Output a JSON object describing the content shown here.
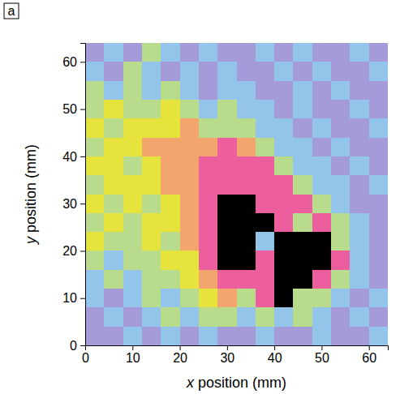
{
  "chart_data": {
    "type": "heatmap",
    "title": "a",
    "x_label": "x position (mm)",
    "y_label": "y position (mm)",
    "xlim": [
      0,
      64
    ],
    "ylim": [
      0,
      64
    ],
    "xticks": [
      0,
      10,
      20,
      30,
      40,
      50,
      60
    ],
    "yticks": [
      0,
      10,
      20,
      30,
      40,
      50,
      60
    ],
    "x": [
      0,
      4,
      8,
      12,
      16,
      20,
      24,
      28,
      32,
      36,
      40,
      44,
      48,
      52,
      56,
      60,
      64
    ],
    "y": [
      0,
      4,
      8,
      12,
      16,
      20,
      24,
      28,
      32,
      36,
      40,
      44,
      48,
      52,
      56,
      60,
      64
    ],
    "z": [
      [
        0,
        0,
        1,
        0,
        1,
        0,
        1,
        0,
        0,
        1,
        0,
        0,
        1,
        0,
        0,
        1
      ],
      [
        0,
        1,
        0,
        1,
        2,
        1,
        2,
        2,
        1,
        2,
        1,
        2,
        1,
        0,
        1,
        0
      ],
      [
        1,
        0,
        1,
        2,
        1,
        2,
        3,
        4,
        2,
        5,
        6,
        2,
        2,
        1,
        0,
        1
      ],
      [
        1,
        2,
        1,
        2,
        2,
        3,
        4,
        5,
        5,
        5,
        6,
        6,
        5,
        2,
        1,
        0
      ],
      [
        2,
        1,
        2,
        2,
        3,
        3,
        5,
        6,
        6,
        5,
        6,
        6,
        6,
        5,
        1,
        0
      ],
      [
        3,
        2,
        2,
        3,
        2,
        4,
        5,
        6,
        6,
        1,
        6,
        6,
        6,
        2,
        1,
        0
      ],
      [
        2,
        3,
        2,
        3,
        3,
        4,
        5,
        6,
        6,
        6,
        5,
        2,
        5,
        2,
        1,
        0
      ],
      [
        3,
        2,
        3,
        2,
        3,
        4,
        5,
        6,
        6,
        5,
        5,
        5,
        2,
        1,
        0,
        0
      ],
      [
        2,
        3,
        3,
        3,
        4,
        4,
        5,
        5,
        5,
        5,
        5,
        2,
        1,
        1,
        0,
        1
      ],
      [
        3,
        3,
        2,
        3,
        4,
        4,
        5,
        5,
        5,
        5,
        2,
        1,
        1,
        0,
        1,
        0
      ],
      [
        2,
        3,
        3,
        4,
        4,
        4,
        4,
        5,
        4,
        2,
        1,
        1,
        0,
        1,
        0,
        0
      ],
      [
        3,
        2,
        3,
        3,
        3,
        4,
        2,
        2,
        2,
        1,
        1,
        0,
        1,
        0,
        0,
        1
      ],
      [
        2,
        3,
        2,
        2,
        3,
        2,
        1,
        2,
        1,
        1,
        0,
        1,
        0,
        0,
        1,
        0
      ],
      [
        2,
        1,
        2,
        1,
        2,
        1,
        0,
        1,
        1,
        0,
        0,
        1,
        0,
        1,
        0,
        0
      ],
      [
        1,
        0,
        2,
        1,
        0,
        1,
        0,
        1,
        0,
        0,
        1,
        0,
        1,
        0,
        0,
        1
      ],
      [
        0,
        1,
        0,
        2,
        1,
        0,
        1,
        0,
        0,
        1,
        0,
        1,
        0,
        0,
        1,
        0
      ]
    ]
  }
}
